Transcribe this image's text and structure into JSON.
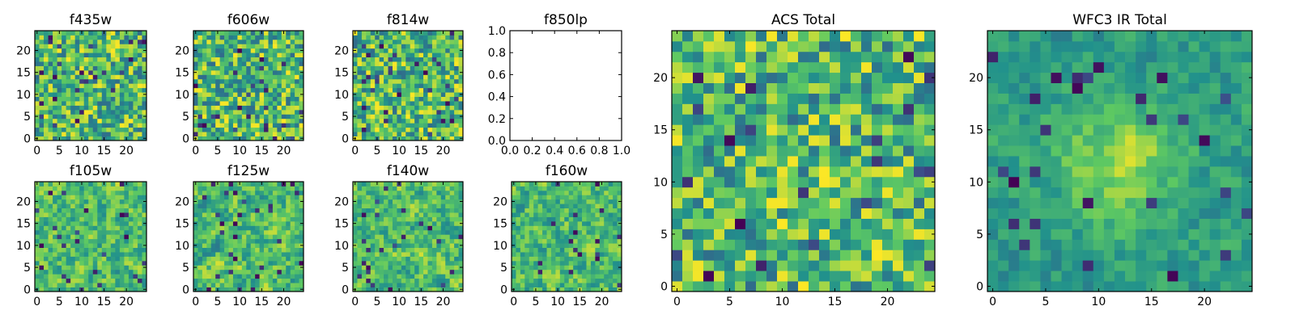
{
  "chart_data": [
    {
      "type": "heatmap",
      "title": "f435w",
      "x_ticks": [
        "0",
        "5",
        "10",
        "15",
        "20"
      ],
      "y_ticks": [
        "0",
        "5",
        "10",
        "15",
        "20"
      ],
      "xlim": [
        -0.5,
        24.5
      ],
      "ylim": [
        -0.5,
        24.5
      ],
      "grid_size": [
        25,
        25
      ],
      "values": "pixel noise, 25x25, viridis colormap"
    },
    {
      "type": "heatmap",
      "title": "f606w",
      "x_ticks": [
        "0",
        "5",
        "10",
        "15",
        "20"
      ],
      "y_ticks": [
        "0",
        "5",
        "10",
        "15",
        "20"
      ],
      "xlim": [
        -0.5,
        24.5
      ],
      "ylim": [
        -0.5,
        24.5
      ],
      "grid_size": [
        25,
        25
      ],
      "values": "pixel noise, 25x25, viridis colormap"
    },
    {
      "type": "heatmap",
      "title": "f814w",
      "x_ticks": [
        "0",
        "5",
        "10",
        "15",
        "20"
      ],
      "y_ticks": [
        "0",
        "5",
        "10",
        "15",
        "20"
      ],
      "xlim": [
        -0.5,
        24.5
      ],
      "ylim": [
        -0.5,
        24.5
      ],
      "grid_size": [
        25,
        25
      ],
      "values": "pixel noise, 25x25, viridis colormap"
    },
    {
      "type": "empty",
      "title": "f850lp",
      "x_ticks": [
        "0.0",
        "0.2",
        "0.4",
        "0.6",
        "0.8",
        "1.0"
      ],
      "y_ticks": [
        "0.0",
        "0.2",
        "0.4",
        "0.6",
        "0.8",
        "1.0"
      ],
      "xlim": [
        0,
        1
      ],
      "ylim": [
        0,
        1
      ]
    },
    {
      "type": "heatmap",
      "title": "f105w",
      "x_ticks": [
        "0",
        "5",
        "10",
        "15",
        "20"
      ],
      "y_ticks": [
        "0",
        "5",
        "10",
        "15",
        "20"
      ],
      "xlim": [
        -0.5,
        24.5
      ],
      "ylim": [
        -0.5,
        24.5
      ],
      "grid_size": [
        25,
        25
      ],
      "values": "pixel noise, 25x25, viridis colormap"
    },
    {
      "type": "heatmap",
      "title": "f125w",
      "x_ticks": [
        "0",
        "5",
        "10",
        "15",
        "20"
      ],
      "y_ticks": [
        "0",
        "5",
        "10",
        "15",
        "20"
      ],
      "xlim": [
        -0.5,
        24.5
      ],
      "ylim": [
        -0.5,
        24.5
      ],
      "grid_size": [
        25,
        25
      ],
      "values": "pixel noise, 25x25, viridis colormap"
    },
    {
      "type": "heatmap",
      "title": "f140w",
      "x_ticks": [
        "0",
        "5",
        "10",
        "15",
        "20"
      ],
      "y_ticks": [
        "0",
        "5",
        "10",
        "15",
        "20"
      ],
      "xlim": [
        -0.5,
        24.5
      ],
      "ylim": [
        -0.5,
        24.5
      ],
      "grid_size": [
        25,
        25
      ],
      "values": "pixel noise, 25x25, viridis colormap"
    },
    {
      "type": "heatmap",
      "title": "f160w",
      "x_ticks": [
        "0",
        "5",
        "10",
        "15",
        "20"
      ],
      "y_ticks": [
        "0",
        "5",
        "10",
        "15",
        "20"
      ],
      "xlim": [
        -0.5,
        24.5
      ],
      "ylim": [
        -0.5,
        24.5
      ],
      "grid_size": [
        25,
        25
      ],
      "values": "pixel noise, 25x25, viridis colormap"
    },
    {
      "type": "heatmap",
      "title": "ACS Total",
      "x_ticks": [
        "0",
        "5",
        "10",
        "15",
        "20"
      ],
      "y_ticks": [
        "0",
        "5",
        "10",
        "15",
        "20"
      ],
      "xlim": [
        -0.5,
        24.5
      ],
      "ylim": [
        -0.5,
        24.5
      ],
      "grid_size": [
        25,
        25
      ],
      "values": "pixel noise, 25x25, viridis colormap"
    },
    {
      "type": "heatmap",
      "title": "WFC3 IR Total",
      "x_ticks": [
        "0",
        "5",
        "10",
        "15",
        "20"
      ],
      "y_ticks": [
        "0",
        "5",
        "10",
        "15",
        "20"
      ],
      "xlim": [
        -0.5,
        24.5
      ],
      "ylim": [
        -0.5,
        24.5
      ],
      "grid_size": [
        25,
        25
      ],
      "values": "pixel noise with central bright source, 25x25, viridis colormap"
    }
  ],
  "colors": {
    "colormap": [
      "#440154",
      "#3b528b",
      "#21918c",
      "#5ec962",
      "#fde725"
    ]
  }
}
